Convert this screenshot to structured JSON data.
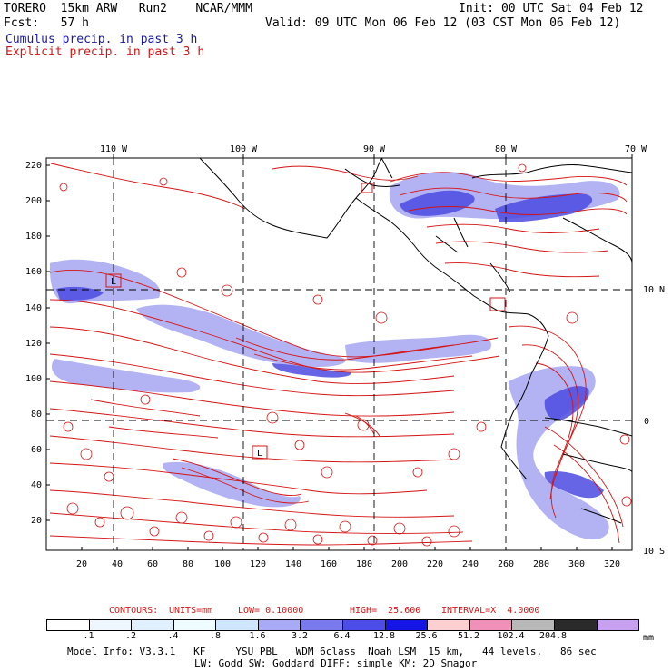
{
  "header": {
    "model_name": "TORERO  15km ARW   Run2    NCAR/MMM",
    "init": "Init: 00 UTC Sat 04 Feb 12",
    "fcst": "Fcst:   57 h",
    "valid": "Valid: 09 UTC Mon 06 Feb 12 (03 CST Mon 06 Feb 12)",
    "cumulus": "Cumulus precip. in past 3 h",
    "explicit": "Explicit precip. in past 3 h"
  },
  "map": {
    "lon_labels": [
      "110 W",
      "100 W",
      "90 W",
      "80 W",
      "70 W"
    ],
    "lat_labels": [
      "10 N",
      "0",
      "10 S"
    ],
    "y_ticks": [
      "220",
      "200",
      "180",
      "160",
      "140",
      "120",
      "100",
      "80",
      "60",
      "40",
      "20"
    ],
    "x_ticks": [
      "20",
      "40",
      "60",
      "80",
      "100",
      "120",
      "140",
      "160",
      "180",
      "200",
      "220",
      "240",
      "260",
      "280",
      "300",
      "320"
    ],
    "box_markers": [
      "L",
      "L"
    ],
    "contour_color": "#d41414",
    "cumulus_color": "#4a4ae0",
    "coast_color": "#000000"
  },
  "contours": {
    "label": "CONTOURS:",
    "units": "UNITS=mm",
    "low": "LOW= 0.10000",
    "high": "HIGH=  25.600",
    "interval": "INTERVAL=X  4.0000"
  },
  "colorbar": {
    "colors": [
      "#ffffff",
      "#eef6ff",
      "#e0f0ff",
      "#eefcff",
      "#cfe6ff",
      "#a8aaf5",
      "#7a7aef",
      "#4c4ce6",
      "#1515e6",
      "#fcd0d0",
      "#f090b8",
      "#b8b8b8",
      "#2a2a2a",
      "#c8a0f0"
    ],
    "labels": [
      ".1",
      ".2",
      ".4",
      ".8",
      "1.6",
      "3.2",
      "6.4",
      "12.8",
      "25.6",
      "51.2",
      "102.4",
      "204.8"
    ],
    "unit": "mm"
  },
  "footer": {
    "line1": "Model Info: V3.3.1   KF     YSU PBL   WDM 6class  Noah LSM  15 km,   44 levels,   86 sec",
    "line2": "LW: Godd SW: Goddard DIFF: simple KM: 2D Smagor"
  }
}
